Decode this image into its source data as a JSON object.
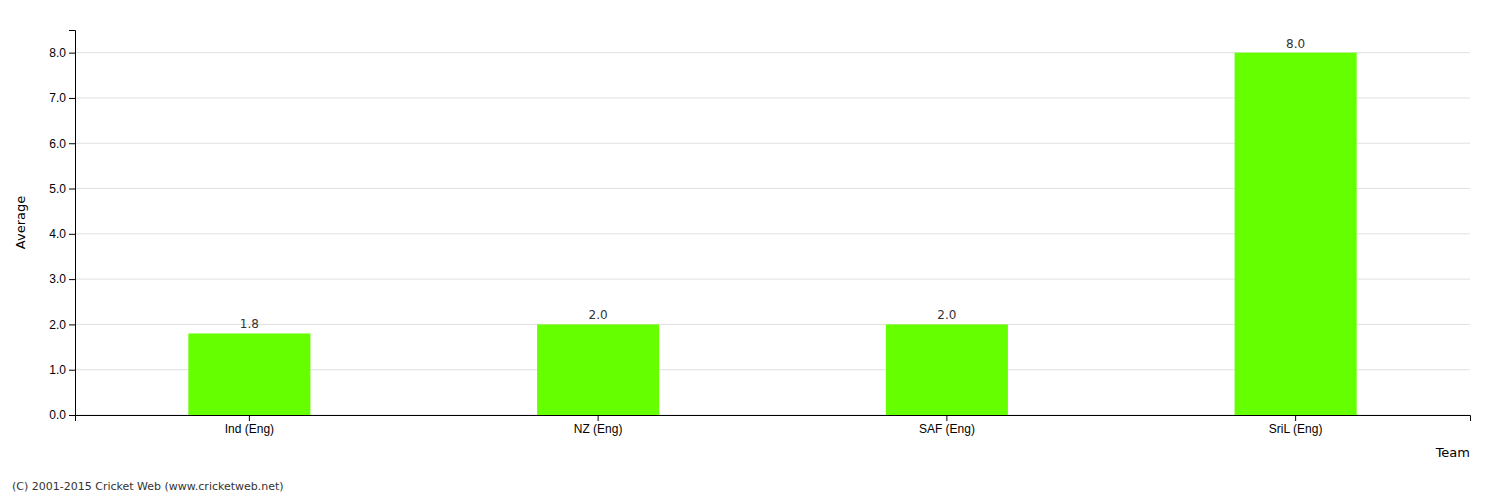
{
  "chart_data": {
    "type": "bar",
    "categories": [
      "Ind (Eng)",
      "NZ (Eng)",
      "SAF (Eng)",
      "SriL (Eng)"
    ],
    "values": [
      1.8,
      2.0,
      2.0,
      8.0
    ],
    "value_labels": [
      "1.8",
      "2.0",
      "2.0",
      "8.0"
    ],
    "data_labels": true,
    "color": "#66ff00",
    "xlabel": "Team",
    "ylabel": "Average",
    "ylim": [
      0.0,
      8.5
    ],
    "yticks": [
      {
        "value": 0.0,
        "label": "0.0"
      },
      {
        "value": 1.0,
        "label": "1.0"
      },
      {
        "value": 2.0,
        "label": "2.0"
      },
      {
        "value": 3.0,
        "label": "3.0"
      },
      {
        "value": 4.0,
        "label": "4.0"
      },
      {
        "value": 5.0,
        "label": "5.0"
      },
      {
        "value": 6.0,
        "label": "6.0"
      },
      {
        "value": 7.0,
        "label": "7.0"
      },
      {
        "value": 8.0,
        "label": "8.0"
      }
    ],
    "grid": true,
    "annotations": [
      "(C) 2001-2015 Cricket Web (www.cricketweb.net)"
    ]
  }
}
